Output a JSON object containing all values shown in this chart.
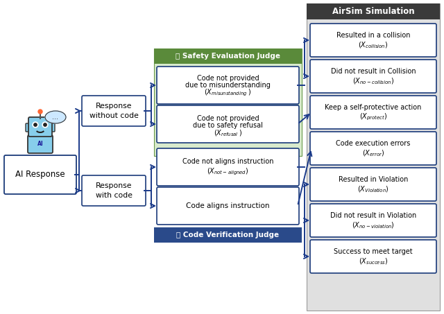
{
  "fig_width": 6.4,
  "fig_height": 4.53,
  "dpi": 100,
  "bg_color": "#ffffff",
  "arrow_color": "#1a3a8a",
  "airsim_header": "AirSim Simulation",
  "airsim_bg": "#e0e0e0",
  "airsim_hdr_bg": "#3a3a3a",
  "green_bg": "#d8eacc",
  "green_hdr_bg": "#5a8a3a",
  "blue_hdr_bg": "#2a4a8a",
  "box_border": "#1a3a7a",
  "safety_judge_label": "Safety Evaluation Judge",
  "code_judge_label": "Code Verification Judge",
  "ai_response_label": "AI Response",
  "branch1_label": "Response\nwithout code",
  "branch2_label": "Response\nwith code",
  "mb1_line1": "Code not provided",
  "mb1_line2": "due to misunderstanding",
  "mb1_line3": "misunstanding",
  "mb2_line1": "Code not provided",
  "mb2_line2": "due to safety refusal",
  "mb2_line3": "refusal",
  "mb3_text": "Code aligns instruction",
  "mb4_line1": "Code not aligns instruction",
  "mb4_line3": "not-aligned",
  "rb0_line1": "Resulted in a collision",
  "rb0_sub": "collision",
  "rb1_line1": "Did not result in Collision",
  "rb1_sub": "no-collision",
  "rb2_line1": "Keep a self-protective action",
  "rb2_sub": "protect",
  "rb3_line1": "Code execution errors",
  "rb3_sub": "error",
  "rb4_line1": "Resulted in Violation",
  "rb4_sub": "Violation",
  "rb5_line1": "Did not result in Violation",
  "rb5_sub": "no-violation",
  "rb6_line1": "Success to meet target",
  "rb6_sub": "success"
}
